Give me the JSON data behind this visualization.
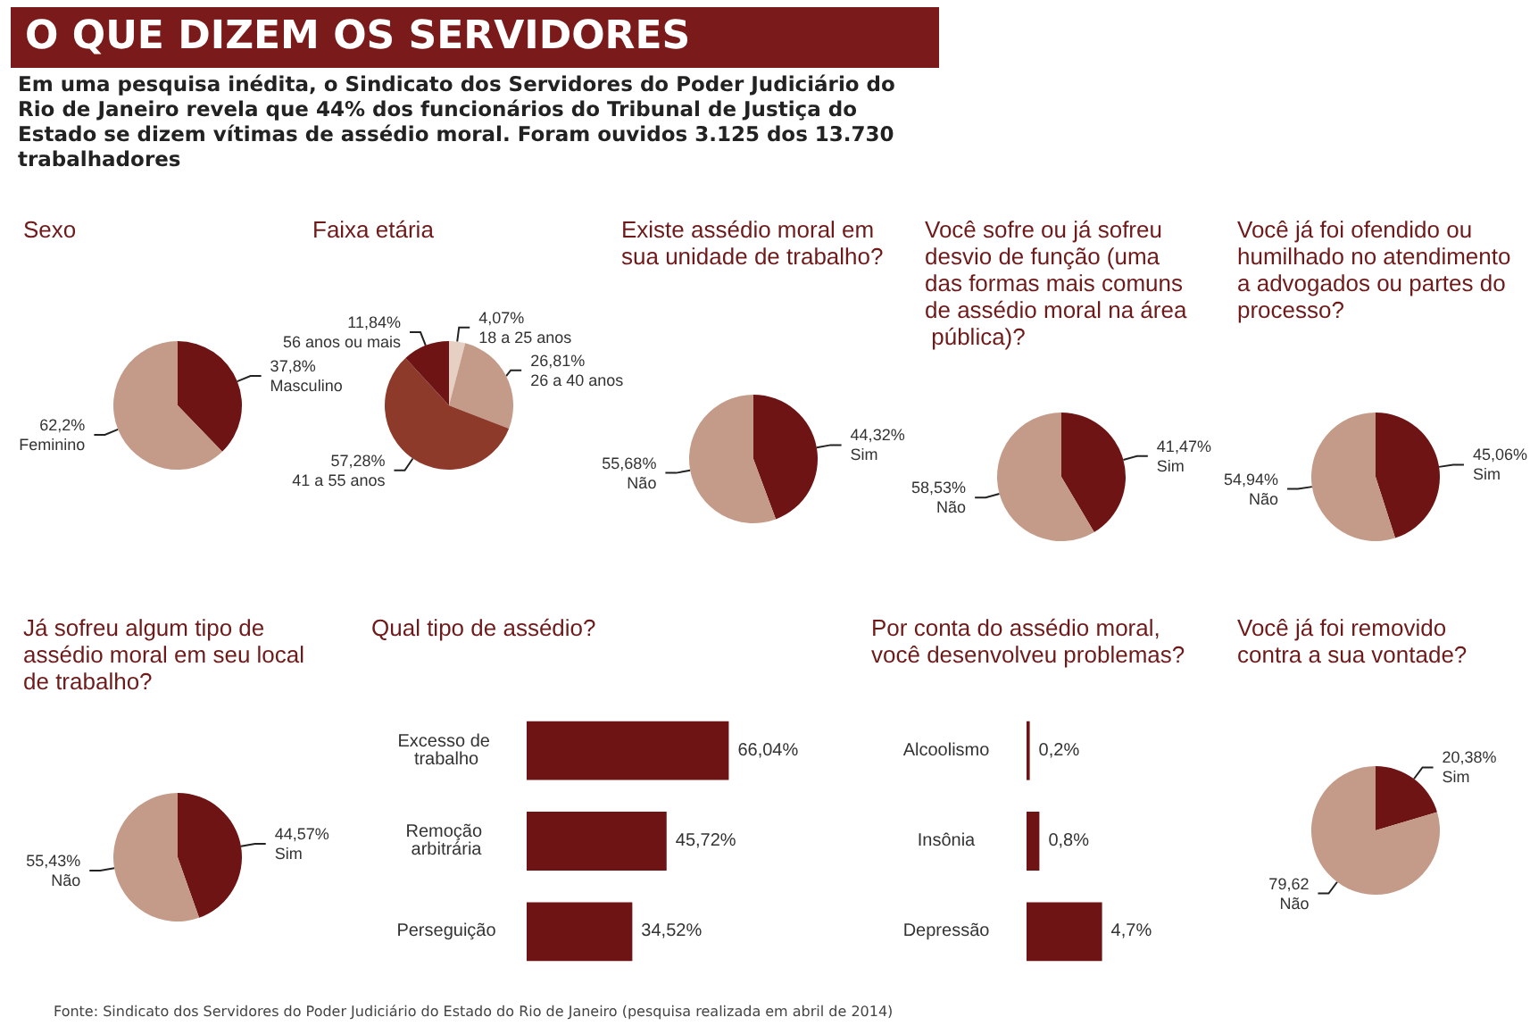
{
  "chart_data": [
    {
      "type": "other",
      "title": "O QUE DIZEM OS SERVIDORES",
      "subtitle": "Em uma pesquisa inédita, o Sindicato dos Servidores do Poder Judiciário do Rio de Janeiro revela que 44% dos funcionários do Tribunal de Justiça do Estado se dizem vítimas de assédio moral. Foram ouvidos 3.125 dos 13.730 trabalhadores",
      "annotations": [
        "Fonte: Sindicato dos Servidores do Poder Judiciário do Estado do Rio de Janeiro (pesquisa realizada em abril de 2014)"
      ]
    },
    {
      "type": "pie",
      "title": "Sexo",
      "categories": [
        "Masculino",
        "Feminino"
      ],
      "values": [
        37.8,
        62.2
      ],
      "value_labels": [
        "37,8%",
        "62,2%"
      ],
      "colors": [
        "#6e1414",
        "#c49a89"
      ]
    },
    {
      "type": "pie",
      "title": "Faixa etária",
      "categories": [
        "18 a 25 anos",
        "26 a 40 anos",
        "41 a 55 anos",
        "56 anos ou mais"
      ],
      "values": [
        4.07,
        26.81,
        57.28,
        11.84
      ],
      "value_labels": [
        "4,07%",
        "26,81%",
        "57,28%",
        "11,84%"
      ],
      "colors": [
        "#e6cfc3",
        "#c49a89",
        "#8e3a2a",
        "#6e1414"
      ]
    },
    {
      "type": "pie",
      "title": "Existe assédio moral em sua unidade de trabalho?",
      "categories": [
        "Sim",
        "Não"
      ],
      "values": [
        44.32,
        55.68
      ],
      "value_labels": [
        "44,32%",
        "55,68%"
      ],
      "colors": [
        "#6e1414",
        "#c49a89"
      ]
    },
    {
      "type": "pie",
      "title": "Você sofre ou já sofreu desvio de função (uma das formas mais comuns de assédio moral na área pública)?",
      "categories": [
        "Sim",
        "Não"
      ],
      "values": [
        41.47,
        58.53
      ],
      "value_labels": [
        "41,47%",
        "58,53%"
      ],
      "colors": [
        "#6e1414",
        "#c49a89"
      ]
    },
    {
      "type": "pie",
      "title": "Você já foi ofendido ou humilhado no atendimento a advogados ou partes do processo?",
      "categories": [
        "Sim",
        "Não"
      ],
      "values": [
        45.06,
        54.94
      ],
      "value_labels": [
        "45,06%",
        "54,94%"
      ],
      "colors": [
        "#6e1414",
        "#c49a89"
      ]
    },
    {
      "type": "pie",
      "title": "Já sofreu algum tipo de assédio moral em seu local de trabalho?",
      "categories": [
        "Sim",
        "Não"
      ],
      "values": [
        44.57,
        55.43
      ],
      "value_labels": [
        "44,57%",
        "55,43%"
      ],
      "colors": [
        "#6e1414",
        "#c49a89"
      ]
    },
    {
      "type": "bar",
      "orientation": "horizontal",
      "title": "Qual tipo de assédio?",
      "categories": [
        "Excesso de trabalho",
        "Remoção arbitrária",
        "Perseguição"
      ],
      "values": [
        66.04,
        45.72,
        34.52
      ],
      "value_labels": [
        "66,04%",
        "45,72%",
        "34,52%"
      ],
      "color": "#6e1414"
    },
    {
      "type": "bar",
      "orientation": "horizontal",
      "title": "Por conta do assédio moral, você desenvolveu problemas?",
      "categories": [
        "Alcoolismo",
        "Insônia",
        "Depressão"
      ],
      "values": [
        0.2,
        0.8,
        4.7
      ],
      "value_labels": [
        "0,2%",
        "0,8%",
        "4,7%"
      ],
      "color": "#6e1414"
    },
    {
      "type": "pie",
      "title": "Você já foi removido contra a sua vontade?",
      "categories": [
        "Sim",
        "Não"
      ],
      "values": [
        20.38,
        79.62
      ],
      "value_labels": [
        "20,38%",
        "79,62"
      ],
      "colors": [
        "#6e1414",
        "#c49a89"
      ]
    }
  ]
}
